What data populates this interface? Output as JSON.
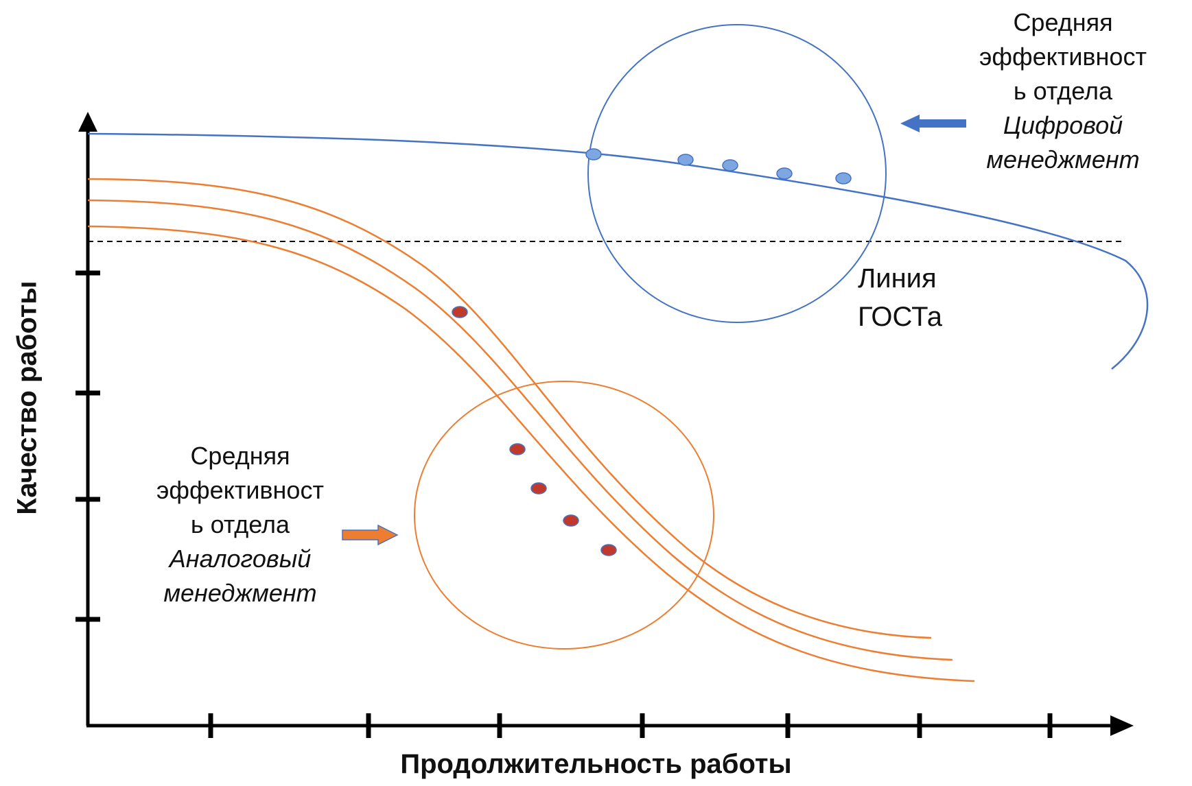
{
  "axes": {
    "x_title": "Продолжительность работы",
    "y_title": "Качество работы"
  },
  "labels": {
    "digital": {
      "line1": "Средняя",
      "line2": "эффективност",
      "line3": "ь отдела",
      "line4": "Цифровой",
      "line5": "менеджмент"
    },
    "analog": {
      "line1": "Средняя",
      "line2": "эффективност",
      "line3": "ь отдела",
      "line4": "Аналоговый",
      "line5": "менеджмент"
    },
    "gost": {
      "line1": "Линия",
      "line2": "ГОСТа"
    }
  },
  "colors": {
    "digital": "#4472C4",
    "digital_point": "#7EA6E0",
    "analog": "#ED7D31",
    "analog_point": "#C0392B",
    "axis": "#000000"
  }
}
